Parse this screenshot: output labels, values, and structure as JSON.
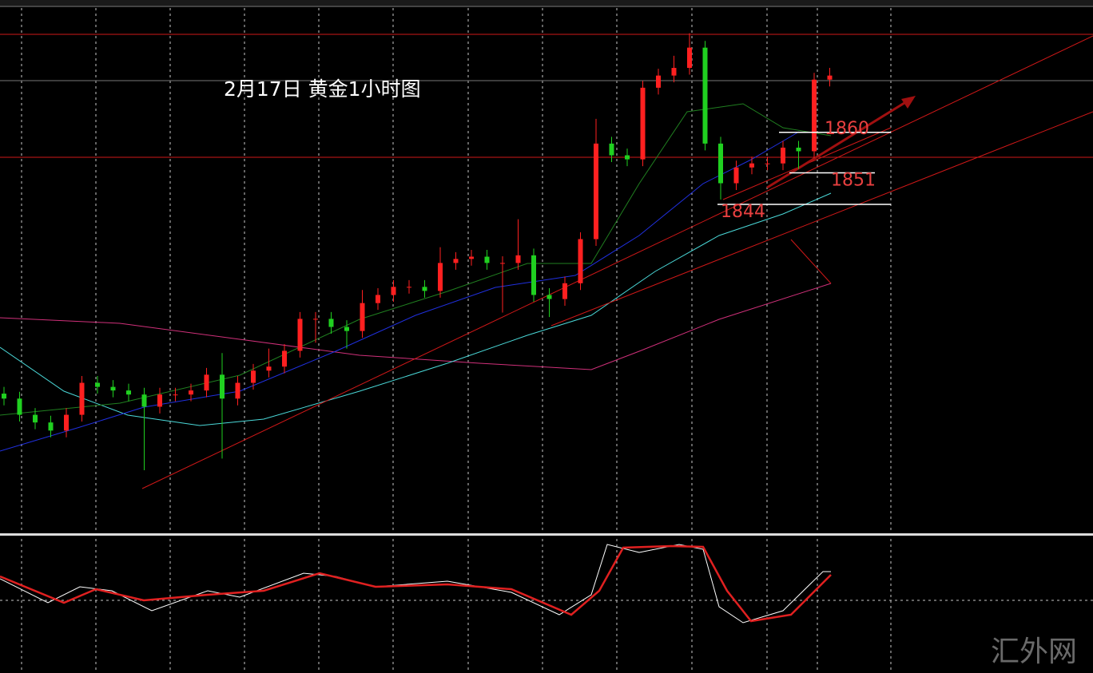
{
  "chart_data": {
    "type": "candlestick",
    "title": "2月17日 黄金1小时图",
    "watermark": "汇外网",
    "ylim": [
      1771,
      1887.6
    ],
    "up_color": "#ff2020",
    "down_color": "#20d020",
    "levels": [
      1860,
      1851,
      1844
    ],
    "open": [
      1802,
      1800.9,
      1797.3,
      1795.6,
      1793.8,
      1797.3,
      1804.4,
      1803.5,
      1802.7,
      1801.8,
      1799.1,
      1801.8,
      1801.8,
      1802.7,
      1806.2,
      1800.9,
      1804.4,
      1807.1,
      1808,
      1811.5,
      1818.6,
      1818.6,
      1816.8,
      1815.9,
      1822.1,
      1823.9,
      1825.7,
      1825.7,
      1824.8,
      1831,
      1831.9,
      1832.4,
      1831,
      1831,
      1832.7,
      1823.9,
      1823,
      1826.5,
      1836.3,
      1857.5,
      1854.9,
      1854,
      1869.9,
      1872.6,
      1874.3,
      1878.8,
      1857.5,
      1848.7,
      1852.2,
      1853.1,
      1853.1,
      1856.6,
      1855.8,
      1871.7
    ],
    "high": [
      1803.5,
      1802.4,
      1798.8,
      1797.1,
      1798.8,
      1805.9,
      1805.9,
      1805,
      1804.2,
      1803.3,
      1803.3,
      1803.3,
      1804.2,
      1807.7,
      1811,
      1805.9,
      1808.6,
      1812,
      1813,
      1820.1,
      1820.1,
      1820.1,
      1818.3,
      1825,
      1825.4,
      1827.2,
      1827.2,
      1827.2,
      1834.5,
      1833.4,
      1833.9,
      1833.9,
      1832.5,
      1840.7,
      1834.2,
      1825.4,
      1828,
      1837.8,
      1863,
      1859,
      1856.4,
      1871.4,
      1874.1,
      1877,
      1882,
      1880.3,
      1859,
      1853.7,
      1854.6,
      1854.6,
      1858.1,
      1858.1,
      1873.2,
      1874.3
    ],
    "low": [
      1799.4,
      1795.8,
      1794.1,
      1792.3,
      1792.3,
      1795.8,
      1802,
      1801.2,
      1800.3,
      1785,
      1797.6,
      1800.3,
      1800.3,
      1801.2,
      1787.6,
      1799.4,
      1802.9,
      1805.6,
      1806.5,
      1810,
      1813.3,
      1815.3,
      1812,
      1814.4,
      1820.6,
      1822.4,
      1824.2,
      1823.3,
      1823.3,
      1829.5,
      1830.4,
      1829.5,
      1820,
      1829.5,
      1822.4,
      1819,
      1821.5,
      1825,
      1834.8,
      1853.4,
      1852.5,
      1852.5,
      1868.4,
      1871.1,
      1872.8,
      1856,
      1845.1,
      1847.2,
      1850.7,
      1851.6,
      1851.6,
      1851.9,
      1854.3,
      1870.2
    ],
    "close": [
      1800.9,
      1797.3,
      1795.6,
      1793.8,
      1797.3,
      1804.4,
      1803.5,
      1802.7,
      1801.8,
      1799.1,
      1801.8,
      1801.8,
      1802.7,
      1806.2,
      1800.9,
      1804.4,
      1807.1,
      1808,
      1811.5,
      1818.6,
      1818.6,
      1816.8,
      1815.9,
      1822.1,
      1823.9,
      1825.7,
      1825.7,
      1824.8,
      1831,
      1831.9,
      1832.4,
      1831,
      1831,
      1832.7,
      1823.9,
      1823,
      1826.5,
      1836.3,
      1857.5,
      1854.9,
      1854,
      1869.9,
      1872.6,
      1874.3,
      1878.8,
      1857.5,
      1848.7,
      1852.2,
      1853.1,
      1853.1,
      1856.6,
      1855.8,
      1871.7,
      1872.6
    ]
  }
}
